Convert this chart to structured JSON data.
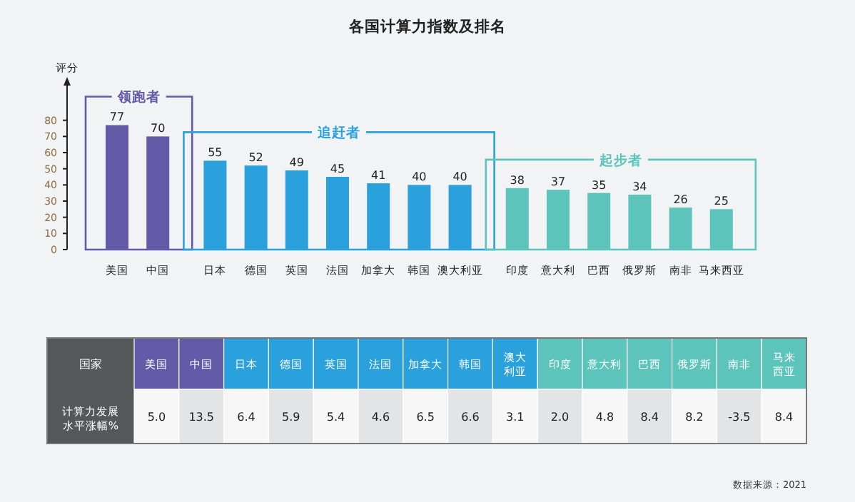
{
  "chart_data": [
    {
      "type": "bar",
      "title": "各国计算力指数及排名",
      "ylabel": "评分",
      "categories": [
        "美国",
        "中国",
        "日本",
        "德国",
        "英国",
        "法国",
        "加拿大",
        "韩国",
        "澳大利亚",
        "印度",
        "意大利",
        "巴西",
        "俄罗斯",
        "南非",
        "马来西亚"
      ],
      "series": [
        {
          "name": "领跑者",
          "color": "#635ba8",
          "values": [
            77,
            70,
            null,
            null,
            null,
            null,
            null,
            null,
            null,
            null,
            null,
            null,
            null,
            null,
            null
          ]
        },
        {
          "name": "追赶者",
          "color": "#2aa1dc",
          "values": [
            null,
            null,
            55,
            52,
            49,
            45,
            41,
            40,
            40,
            null,
            null,
            null,
            null,
            null,
            null
          ]
        },
        {
          "name": "起步者",
          "color": "#5cc4bb",
          "values": [
            null,
            null,
            null,
            null,
            null,
            null,
            null,
            null,
            null,
            38,
            37,
            35,
            34,
            26,
            25
          ]
        }
      ],
      "ylim": [
        0,
        105
      ],
      "yticks": [
        0,
        10,
        20,
        30,
        40,
        50,
        60,
        70,
        80
      ],
      "data_labels": true
    },
    {
      "type": "other",
      "xlabel": "国家",
      "ylabel": "计算力发展水平涨幅%",
      "categories": [
        "美国",
        "中国",
        "日本",
        "德国",
        "英国",
        "法国",
        "加拿大",
        "韩国",
        "澳大利亚",
        "印度",
        "意大利",
        "巴西",
        "俄罗斯",
        "南非",
        "马来西亚"
      ],
      "values": [
        5.0,
        13.5,
        6.4,
        5.9,
        5.4,
        4.6,
        6.5,
        6.6,
        3.1,
        2.0,
        4.8,
        8.4,
        8.2,
        -3.5,
        8.4
      ],
      "value_labels": [
        "5.0",
        "13.5",
        "6.4",
        "5.9",
        "5.4",
        "4.6",
        "6.5",
        "6.6",
        "3.1",
        "2.0",
        "4.8",
        "8.4",
        "8.2",
        "-3.5",
        "8.4"
      ],
      "annotations": [
        "数据来源：2021"
      ]
    }
  ]
}
